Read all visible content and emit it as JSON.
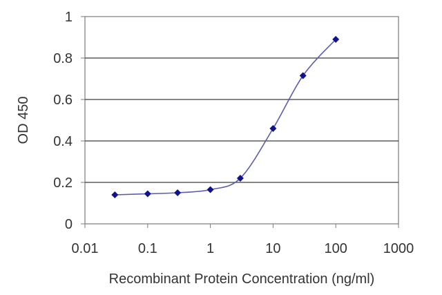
{
  "chart_data": {
    "type": "line",
    "xlabel": "Recombinant Protein Concentration (ng/ml)",
    "ylabel": "OD 450",
    "xscale": "log",
    "xlim": [
      0.01,
      1000
    ],
    "ylim": [
      0,
      1
    ],
    "x_ticks": [
      {
        "value": 0.01,
        "label": "0.01"
      },
      {
        "value": 0.1,
        "label": "0.1"
      },
      {
        "value": 1,
        "label": "1"
      },
      {
        "value": 10,
        "label": "10"
      },
      {
        "value": 100,
        "label": "100"
      },
      {
        "value": 1000,
        "label": "1000"
      }
    ],
    "y_ticks": [
      {
        "value": 0,
        "label": "0"
      },
      {
        "value": 0.2,
        "label": "0.2"
      },
      {
        "value": 0.4,
        "label": "0.4"
      },
      {
        "value": 0.6,
        "label": "0.6"
      },
      {
        "value": 0.8,
        "label": "0.8"
      },
      {
        "value": 1,
        "label": "1"
      }
    ],
    "grid": "horizontal",
    "series": [
      {
        "x": [
          0.03,
          0.1,
          0.3,
          1,
          3,
          10,
          30,
          100
        ],
        "y": [
          0.14,
          0.145,
          0.15,
          0.165,
          0.22,
          0.46,
          0.715,
          0.89
        ]
      }
    ],
    "colors": {
      "line": "#5b5bb5",
      "marker": "#10148c",
      "grid": "#3a3a3a",
      "frame": "#7a7a7a"
    }
  }
}
